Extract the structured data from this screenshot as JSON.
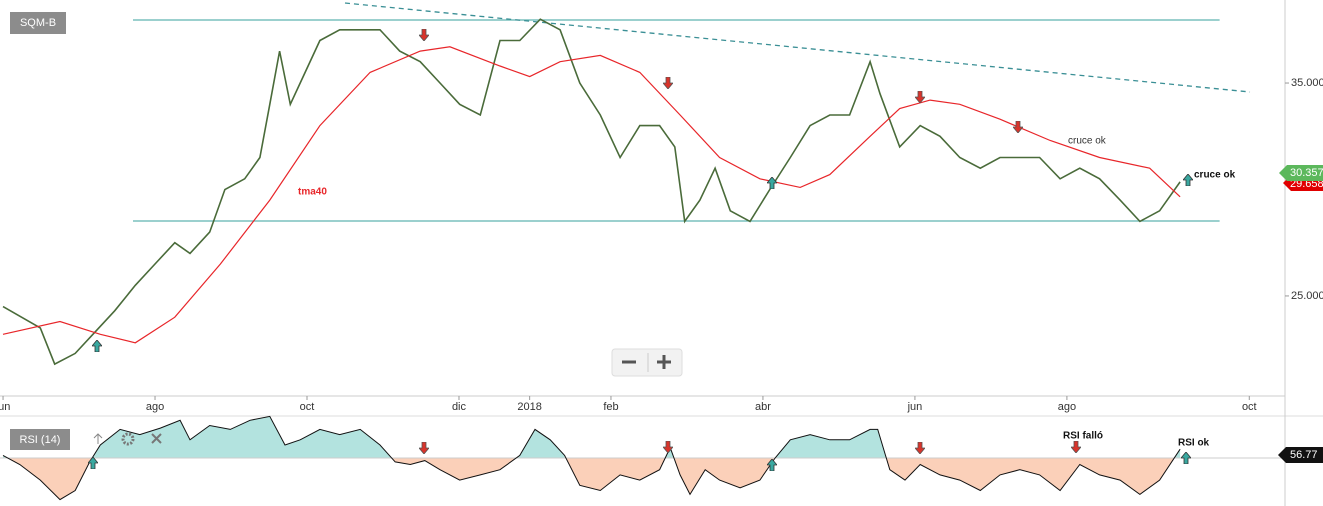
{
  "chart_data": [
    {
      "type": "line",
      "title": "SQM-B",
      "xlim": [
        -0.04,
        16.87
      ],
      "xticks": [
        {
          "value": 0,
          "label": "jun"
        },
        {
          "value": 2,
          "label": "ago"
        },
        {
          "value": 4,
          "label": "oct"
        },
        {
          "value": 6,
          "label": "dic"
        },
        {
          "value": 6.93,
          "label": "2018"
        },
        {
          "value": 8,
          "label": "feb"
        },
        {
          "value": 10,
          "label": "abr"
        },
        {
          "value": 12,
          "label": "jun"
        },
        {
          "value": 14,
          "label": "ago"
        },
        {
          "value": 16.4,
          "label": "oct"
        }
      ],
      "ylim": [
        20.3,
        38.9
      ],
      "yticks": [
        {
          "value": 25,
          "label": "25.000"
        },
        {
          "value": 35,
          "label": "35.000"
        }
      ],
      "series": [
        {
          "name": "SQM-B",
          "color": "#4a6b3a",
          "x": [
            0,
            0.49,
            0.68,
            0.95,
            1.21,
            1.47,
            1.74,
            2.0,
            2.26,
            2.46,
            2.72,
            2.92,
            3.18,
            3.38,
            3.51,
            3.64,
            3.78,
            3.91,
            4.17,
            4.43,
            4.7,
            4.96,
            5.22,
            5.49,
            5.75,
            6.01,
            6.28,
            6.54,
            6.8,
            7.07,
            7.33,
            7.59,
            7.86,
            8.12,
            8.38,
            8.64,
            8.84,
            8.97,
            9.17,
            9.37,
            9.57,
            9.83,
            10.09,
            10.36,
            10.62,
            10.88,
            11.14,
            11.41,
            11.54,
            11.8,
            12.07,
            12.33,
            12.59,
            12.86,
            13.12,
            13.38,
            13.64,
            13.91,
            14.17,
            14.43,
            14.7,
            14.96,
            15.22,
            15.49
          ],
          "values": [
            24.5,
            23.5,
            21.8,
            22.3,
            23.3,
            24.3,
            25.5,
            26.5,
            27.5,
            27,
            28,
            30,
            30.5,
            31.5,
            34,
            36.5,
            34,
            35,
            37,
            37.5,
            37.5,
            37.5,
            36.5,
            36,
            35,
            34,
            33.5,
            37,
            37,
            38,
            37.5,
            35,
            33.5,
            31.5,
            33,
            33,
            32,
            28.5,
            29.5,
            31,
            29,
            28.5,
            30,
            31.5,
            33,
            33.5,
            33.5,
            36,
            34.5,
            32,
            33,
            32.5,
            31.5,
            31,
            31.5,
            31.5,
            31.5,
            30.5,
            31,
            30.5,
            29.5,
            28.5,
            29,
            30.357
          ]
        },
        {
          "name": "tma40",
          "color": "#e8262a",
          "x": [
            0,
            0.75,
            1.28,
            1.74,
            2.26,
            2.86,
            3.51,
            4.17,
            4.83,
            5.49,
            5.88,
            6.54,
            6.93,
            7.33,
            7.86,
            8.38,
            8.91,
            9.43,
            9.96,
            10.49,
            10.88,
            11.41,
            11.8,
            12.2,
            12.59,
            13.12,
            13.78,
            14.43,
            15.09,
            15.49
          ],
          "values": [
            23.2,
            23.8,
            23.2,
            22.8,
            24,
            26.5,
            29.5,
            33,
            35.5,
            36.5,
            36.7,
            35.8,
            35.3,
            36,
            36.3,
            35.5,
            33.5,
            31.5,
            30.5,
            30.1,
            30.7,
            32.5,
            33.8,
            34.2,
            34,
            33.3,
            32.3,
            31.5,
            31,
            29.658
          ]
        }
      ],
      "lines": [
        {
          "color": "#5fb3b0",
          "dashed": false,
          "x": [
            1.71,
            16.01
          ],
          "values": [
            37.96,
            37.96
          ]
        },
        {
          "color": "#5fb3b0",
          "dashed": false,
          "x": [
            1.71,
            16.01
          ],
          "values": [
            28.52,
            28.52
          ]
        },
        {
          "color": "#3a8f95",
          "dashed": true,
          "x": [
            4.5,
            16.41
          ],
          "values": [
            38.76,
            34.58
          ]
        }
      ],
      "annotations": [
        "cruce ok",
        "cruce ok"
      ]
    },
    {
      "type": "area",
      "title": "RSI (14)",
      "xlim": [
        -0.04,
        16.87
      ],
      "ylim": [
        13.1,
        82.3
      ],
      "baseline": 50,
      "colors": {
        "above": "#b3e3df",
        "below": "#fbd0b9",
        "line": "#111111"
      },
      "x": [
        0,
        0.22,
        0.49,
        0.75,
        0.95,
        1.14,
        1.28,
        1.54,
        1.8,
        2.07,
        2.33,
        2.46,
        2.72,
        2.99,
        3.25,
        3.51,
        3.71,
        3.91,
        4.17,
        4.43,
        4.7,
        4.96,
        5.16,
        5.36,
        5.55,
        5.75,
        6.01,
        6.28,
        6.54,
        6.8,
        7.0,
        7.2,
        7.39,
        7.59,
        7.86,
        8.12,
        8.38,
        8.64,
        8.78,
        8.91,
        9.04,
        9.24,
        9.43,
        9.7,
        9.96,
        10.16,
        10.36,
        10.62,
        10.88,
        11.14,
        11.41,
        11.51,
        11.67,
        11.87,
        12.07,
        12.33,
        12.59,
        12.86,
        13.12,
        13.38,
        13.64,
        13.91,
        14.17,
        14.43,
        14.7,
        14.96,
        15.22,
        15.49
      ],
      "values": [
        52,
        45,
        33,
        18,
        25,
        47,
        60,
        72,
        68,
        73,
        79,
        64,
        75,
        72,
        79,
        82,
        60,
        64,
        72,
        68,
        72,
        60,
        47,
        45,
        48,
        41,
        33,
        37,
        41,
        52,
        72,
        64,
        52,
        29,
        25,
        37,
        33,
        41,
        58,
        37,
        22,
        41,
        33,
        27,
        33,
        50,
        64,
        68,
        64,
        64,
        72,
        72,
        41,
        33,
        45,
        37,
        33,
        25,
        37,
        41,
        37,
        25,
        45,
        37,
        33,
        22,
        33,
        56.77
      ],
      "annotations": [
        "RSI falló",
        "RSI ok"
      ]
    }
  ]
}
